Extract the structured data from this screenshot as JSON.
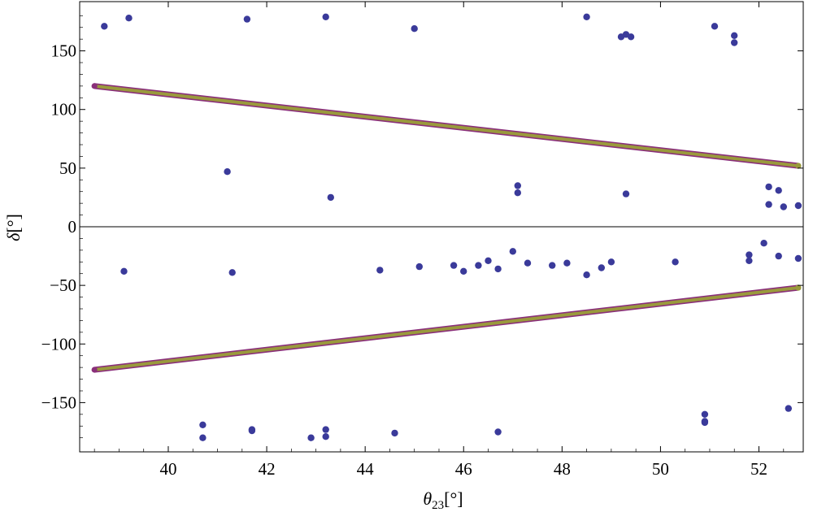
{
  "chart_data": {
    "type": "scatter",
    "title": "",
    "xlabel": {
      "symbol": "θ",
      "sub": "23",
      "unit": "[°]"
    },
    "ylabel": {
      "symbol": "δ",
      "unit": "[°]"
    },
    "xlim": [
      38.2,
      52.9
    ],
    "ylim": [
      -192,
      192
    ],
    "xticks": [
      40,
      42,
      44,
      46,
      48,
      50,
      52
    ],
    "xtick_labels": [
      "40",
      "42",
      "44",
      "46",
      "48",
      "50",
      "52"
    ],
    "yticks": [
      -150,
      -100,
      -50,
      0,
      50,
      100,
      150
    ],
    "ytick_labels": [
      "−150",
      "−100",
      "−50",
      "0",
      "50",
      "100",
      "150"
    ],
    "grid": false,
    "legend": "none",
    "zero_line": true,
    "colors": {
      "points": "#3a3a9a",
      "band_outer": "#8a2f7a",
      "band_inner": "#9a9a3c"
    },
    "bands": [
      {
        "branch": "upper",
        "x_start": 38.5,
        "y_start": 120,
        "x_end": 52.8,
        "y_end": 52,
        "half_width_deg": 2.5
      },
      {
        "branch": "lower",
        "x_start": 38.5,
        "y_start": -122,
        "x_end": 52.8,
        "y_end": -52,
        "half_width_deg": 2.5
      }
    ],
    "series": [
      {
        "points": [
          [
            38.7,
            171
          ],
          [
            39.2,
            178
          ],
          [
            41.6,
            177
          ],
          [
            43.2,
            179
          ],
          [
            45.0,
            169
          ],
          [
            48.5,
            179
          ],
          [
            49.2,
            162
          ],
          [
            49.3,
            164
          ],
          [
            49.4,
            162
          ],
          [
            51.1,
            171
          ],
          [
            51.5,
            163
          ],
          [
            51.5,
            157
          ],
          [
            41.2,
            47
          ],
          [
            43.3,
            25
          ],
          [
            47.1,
            35
          ],
          [
            47.1,
            29
          ],
          [
            49.3,
            28
          ],
          [
            52.2,
            34
          ],
          [
            52.2,
            19
          ],
          [
            52.4,
            31
          ],
          [
            52.5,
            17
          ],
          [
            52.8,
            18
          ],
          [
            39.1,
            -38
          ],
          [
            41.3,
            -39
          ],
          [
            44.3,
            -37
          ],
          [
            45.1,
            -34
          ],
          [
            45.8,
            -33
          ],
          [
            46.0,
            -38
          ],
          [
            46.3,
            -33
          ],
          [
            46.5,
            -29
          ],
          [
            46.7,
            -36
          ],
          [
            47.0,
            -21
          ],
          [
            47.3,
            -31
          ],
          [
            47.8,
            -33
          ],
          [
            48.1,
            -31
          ],
          [
            48.5,
            -41
          ],
          [
            48.8,
            -35
          ],
          [
            49.0,
            -30
          ],
          [
            50.3,
            -30
          ],
          [
            51.8,
            -29
          ],
          [
            51.8,
            -24
          ],
          [
            52.1,
            -14
          ],
          [
            52.4,
            -25
          ],
          [
            52.8,
            -27
          ],
          [
            40.7,
            -180
          ],
          [
            40.7,
            -169
          ],
          [
            41.7,
            -173
          ],
          [
            41.7,
            -174
          ],
          [
            42.9,
            -180
          ],
          [
            43.2,
            -173
          ],
          [
            43.2,
            -179
          ],
          [
            44.6,
            -176
          ],
          [
            46.7,
            -175
          ],
          [
            50.9,
            -166
          ],
          [
            50.9,
            -167
          ],
          [
            50.9,
            -160
          ],
          [
            52.6,
            -155
          ]
        ]
      }
    ]
  }
}
